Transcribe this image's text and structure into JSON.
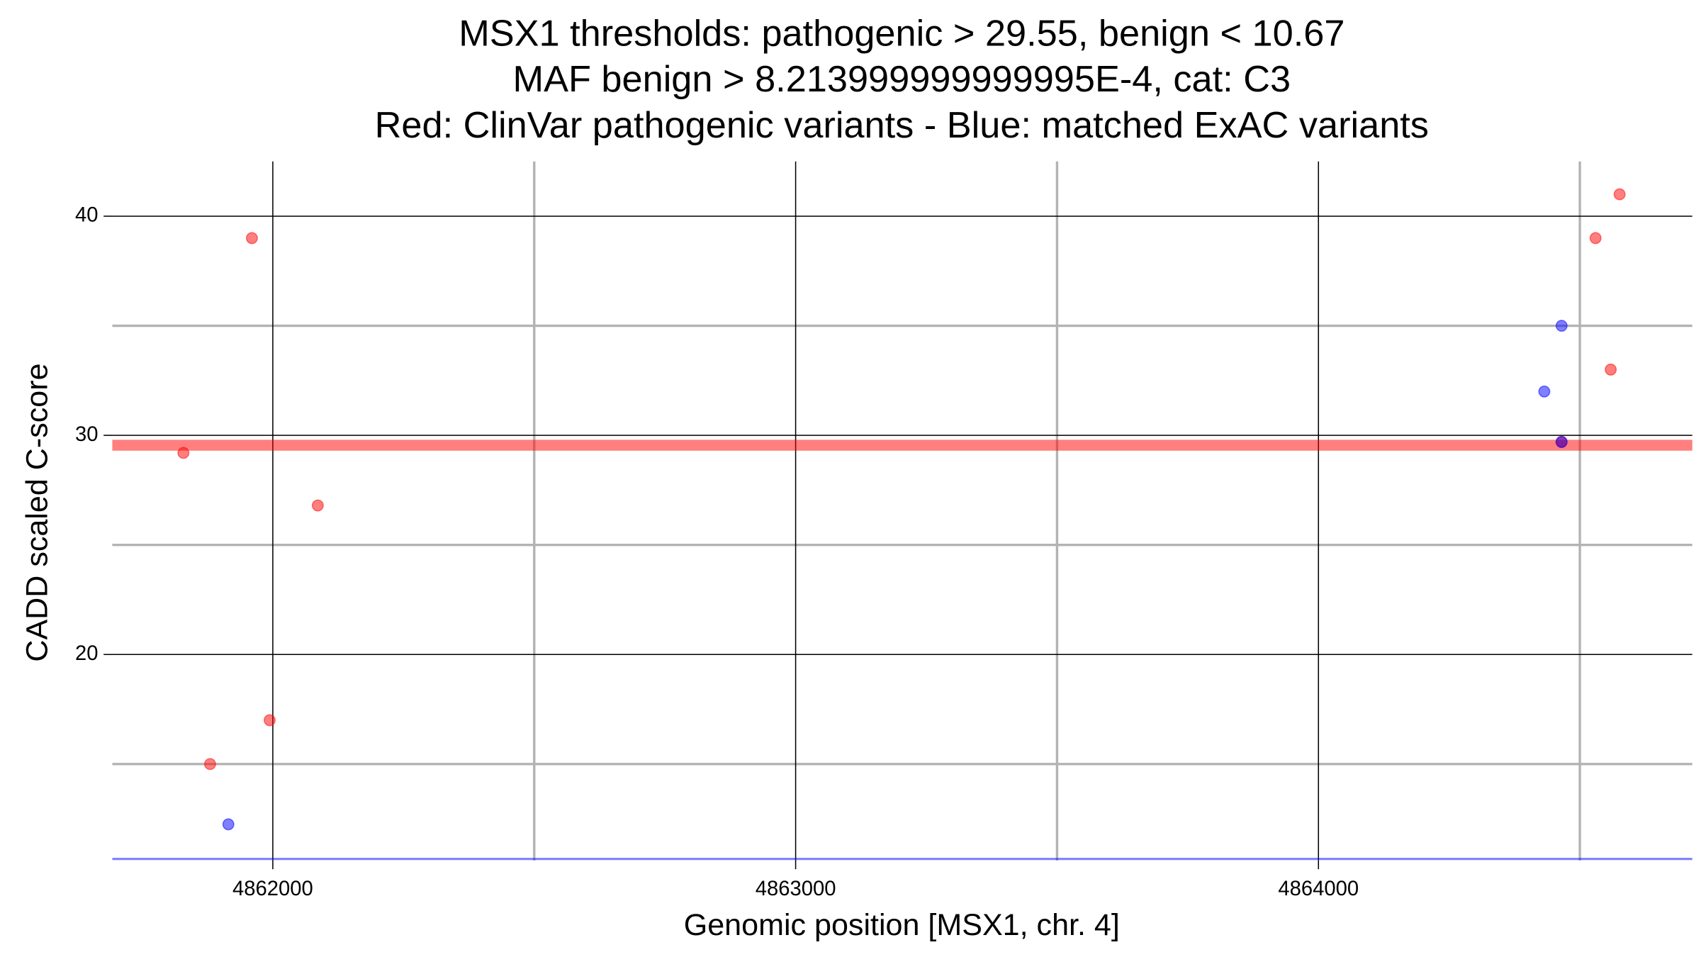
{
  "chart_data": {
    "type": "scatter",
    "title": [
      "MSX1 thresholds: pathogenic > 29.55, benign < 10.67",
      "MAF benign > 8.213999999999995E-4, cat: C3",
      "Red: ClinVar pathogenic variants - Blue: matched ExAC variants"
    ],
    "x_label": "Genomic position [MSX1, chr. 4]",
    "y_label": "CADD scaled C-score",
    "xlim": [
      4861693,
      4864715
    ],
    "ylim": [
      10.6,
      42.5
    ],
    "xticks": [
      4862000,
      4863000,
      4864000
    ],
    "yticks": [
      20,
      30,
      40
    ],
    "minor_xticks": [
      4862500,
      4863500,
      4864500
    ],
    "minor_yticks": [
      15,
      25,
      35
    ],
    "grid": true,
    "hlines": [
      {
        "value": 29.55,
        "color": "#ff0000"
      },
      {
        "value": 10.67,
        "color": "#0000ff"
      }
    ],
    "series": [
      {
        "color": "#ff0000",
        "x": [
          4861829,
          4861960,
          4861880,
          4861994,
          4862086,
          4864465,
          4864530,
          4864576,
          4864559
        ],
        "values": [
          29.2,
          39,
          15,
          17,
          26.8,
          29.7,
          39,
          41,
          33
        ]
      },
      {
        "color": "#0000ff",
        "x": [
          4861915,
          4864432,
          4864465,
          4864465
        ],
        "values": [
          12.25,
          32,
          35,
          29.7
        ]
      }
    ]
  }
}
